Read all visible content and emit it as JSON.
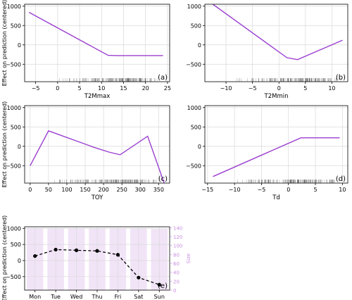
{
  "colors": {
    "line": "#9b3fd0",
    "bar": "#f1e4f7",
    "right_axis": "#c88fe0",
    "rug": "#333333",
    "grid": "#d9d9d9",
    "dots": "#000000"
  },
  "chart_data": [
    {
      "type": "line",
      "panel_label": "(a)",
      "xlabel": "T2Mmax",
      "ylabel": "Effect on prediction (centered)",
      "xlim": [
        -7.5,
        25.5
      ],
      "ylim": [
        -950,
        1050
      ],
      "xticks": [
        -5,
        0,
        5,
        10,
        15,
        20,
        25
      ],
      "yticks": [
        -500,
        0,
        500,
        1000
      ],
      "x": [
        -6.5,
        11.5,
        13.5,
        24
      ],
      "y": [
        840,
        -270,
        -275,
        -275
      ],
      "rug": {
        "range": [
          -6,
          24
        ]
      },
      "grid": true
    },
    {
      "type": "line",
      "panel_label": "(b)",
      "xlabel": "T2Mmin",
      "ylabel": "",
      "xlim": [
        -14,
        13
      ],
      "ylim": [
        -950,
        1050
      ],
      "xticks": [
        -10,
        -5,
        0,
        5,
        10
      ],
      "yticks": [
        -500,
        0,
        500,
        1000
      ],
      "x": [
        -12.5,
        1.5,
        3.5,
        12
      ],
      "y": [
        1050,
        -330,
        -380,
        120
      ],
      "rug": {
        "range": [
          -13,
          12
        ]
      },
      "grid": true
    },
    {
      "type": "line",
      "panel_label": "(c)",
      "xlabel": "TOY",
      "ylabel": "Effect on prediction (centered)",
      "xlim": [
        -15,
        380
      ],
      "ylim": [
        -950,
        1050
      ],
      "xticks": [
        0,
        50,
        100,
        150,
        200,
        250,
        300,
        350
      ],
      "yticks": [
        -500,
        0,
        500,
        1000
      ],
      "x": [
        0,
        50,
        175,
        215,
        245,
        320,
        365
      ],
      "y": [
        -500,
        400,
        -30,
        -150,
        -220,
        260,
        -950
      ],
      "rug": {
        "range": [
          0,
          365
        ]
      },
      "grid": true
    },
    {
      "type": "line",
      "panel_label": "(d)",
      "xlabel": "Td",
      "ylabel": "",
      "xlim": [
        -15.5,
        11
      ],
      "ylim": [
        -950,
        1050
      ],
      "xticks": [
        -15,
        -10,
        -5,
        0,
        5,
        10
      ],
      "yticks": [
        -500,
        0,
        500,
        1000
      ],
      "x": [
        -14,
        2.3,
        9.5
      ],
      "y": [
        -780,
        220,
        220
      ],
      "rug": {
        "range": [
          -14,
          10
        ]
      },
      "grid": true
    },
    {
      "type": "bar+line",
      "panel_label": "(e)",
      "xlabel": "",
      "ylabel": "Effect on prediction (centered)",
      "y2label": "Size",
      "categories": [
        "Mon",
        "Tue",
        "Wed",
        "Thu",
        "Fri",
        "Sat",
        "Sun"
      ],
      "values": [
        140,
        340,
        320,
        300,
        180,
        -530,
        -750
      ],
      "bar_values": [
        138,
        138,
        138,
        138,
        138,
        139,
        137
      ],
      "ylim": [
        -920,
        1050
      ],
      "y2lim": [
        0,
        142
      ],
      "yticks": [
        -500,
        0,
        500,
        1000
      ],
      "y2ticks": [
        0,
        20,
        40,
        60,
        80,
        100,
        120,
        140
      ],
      "grid": true
    }
  ]
}
